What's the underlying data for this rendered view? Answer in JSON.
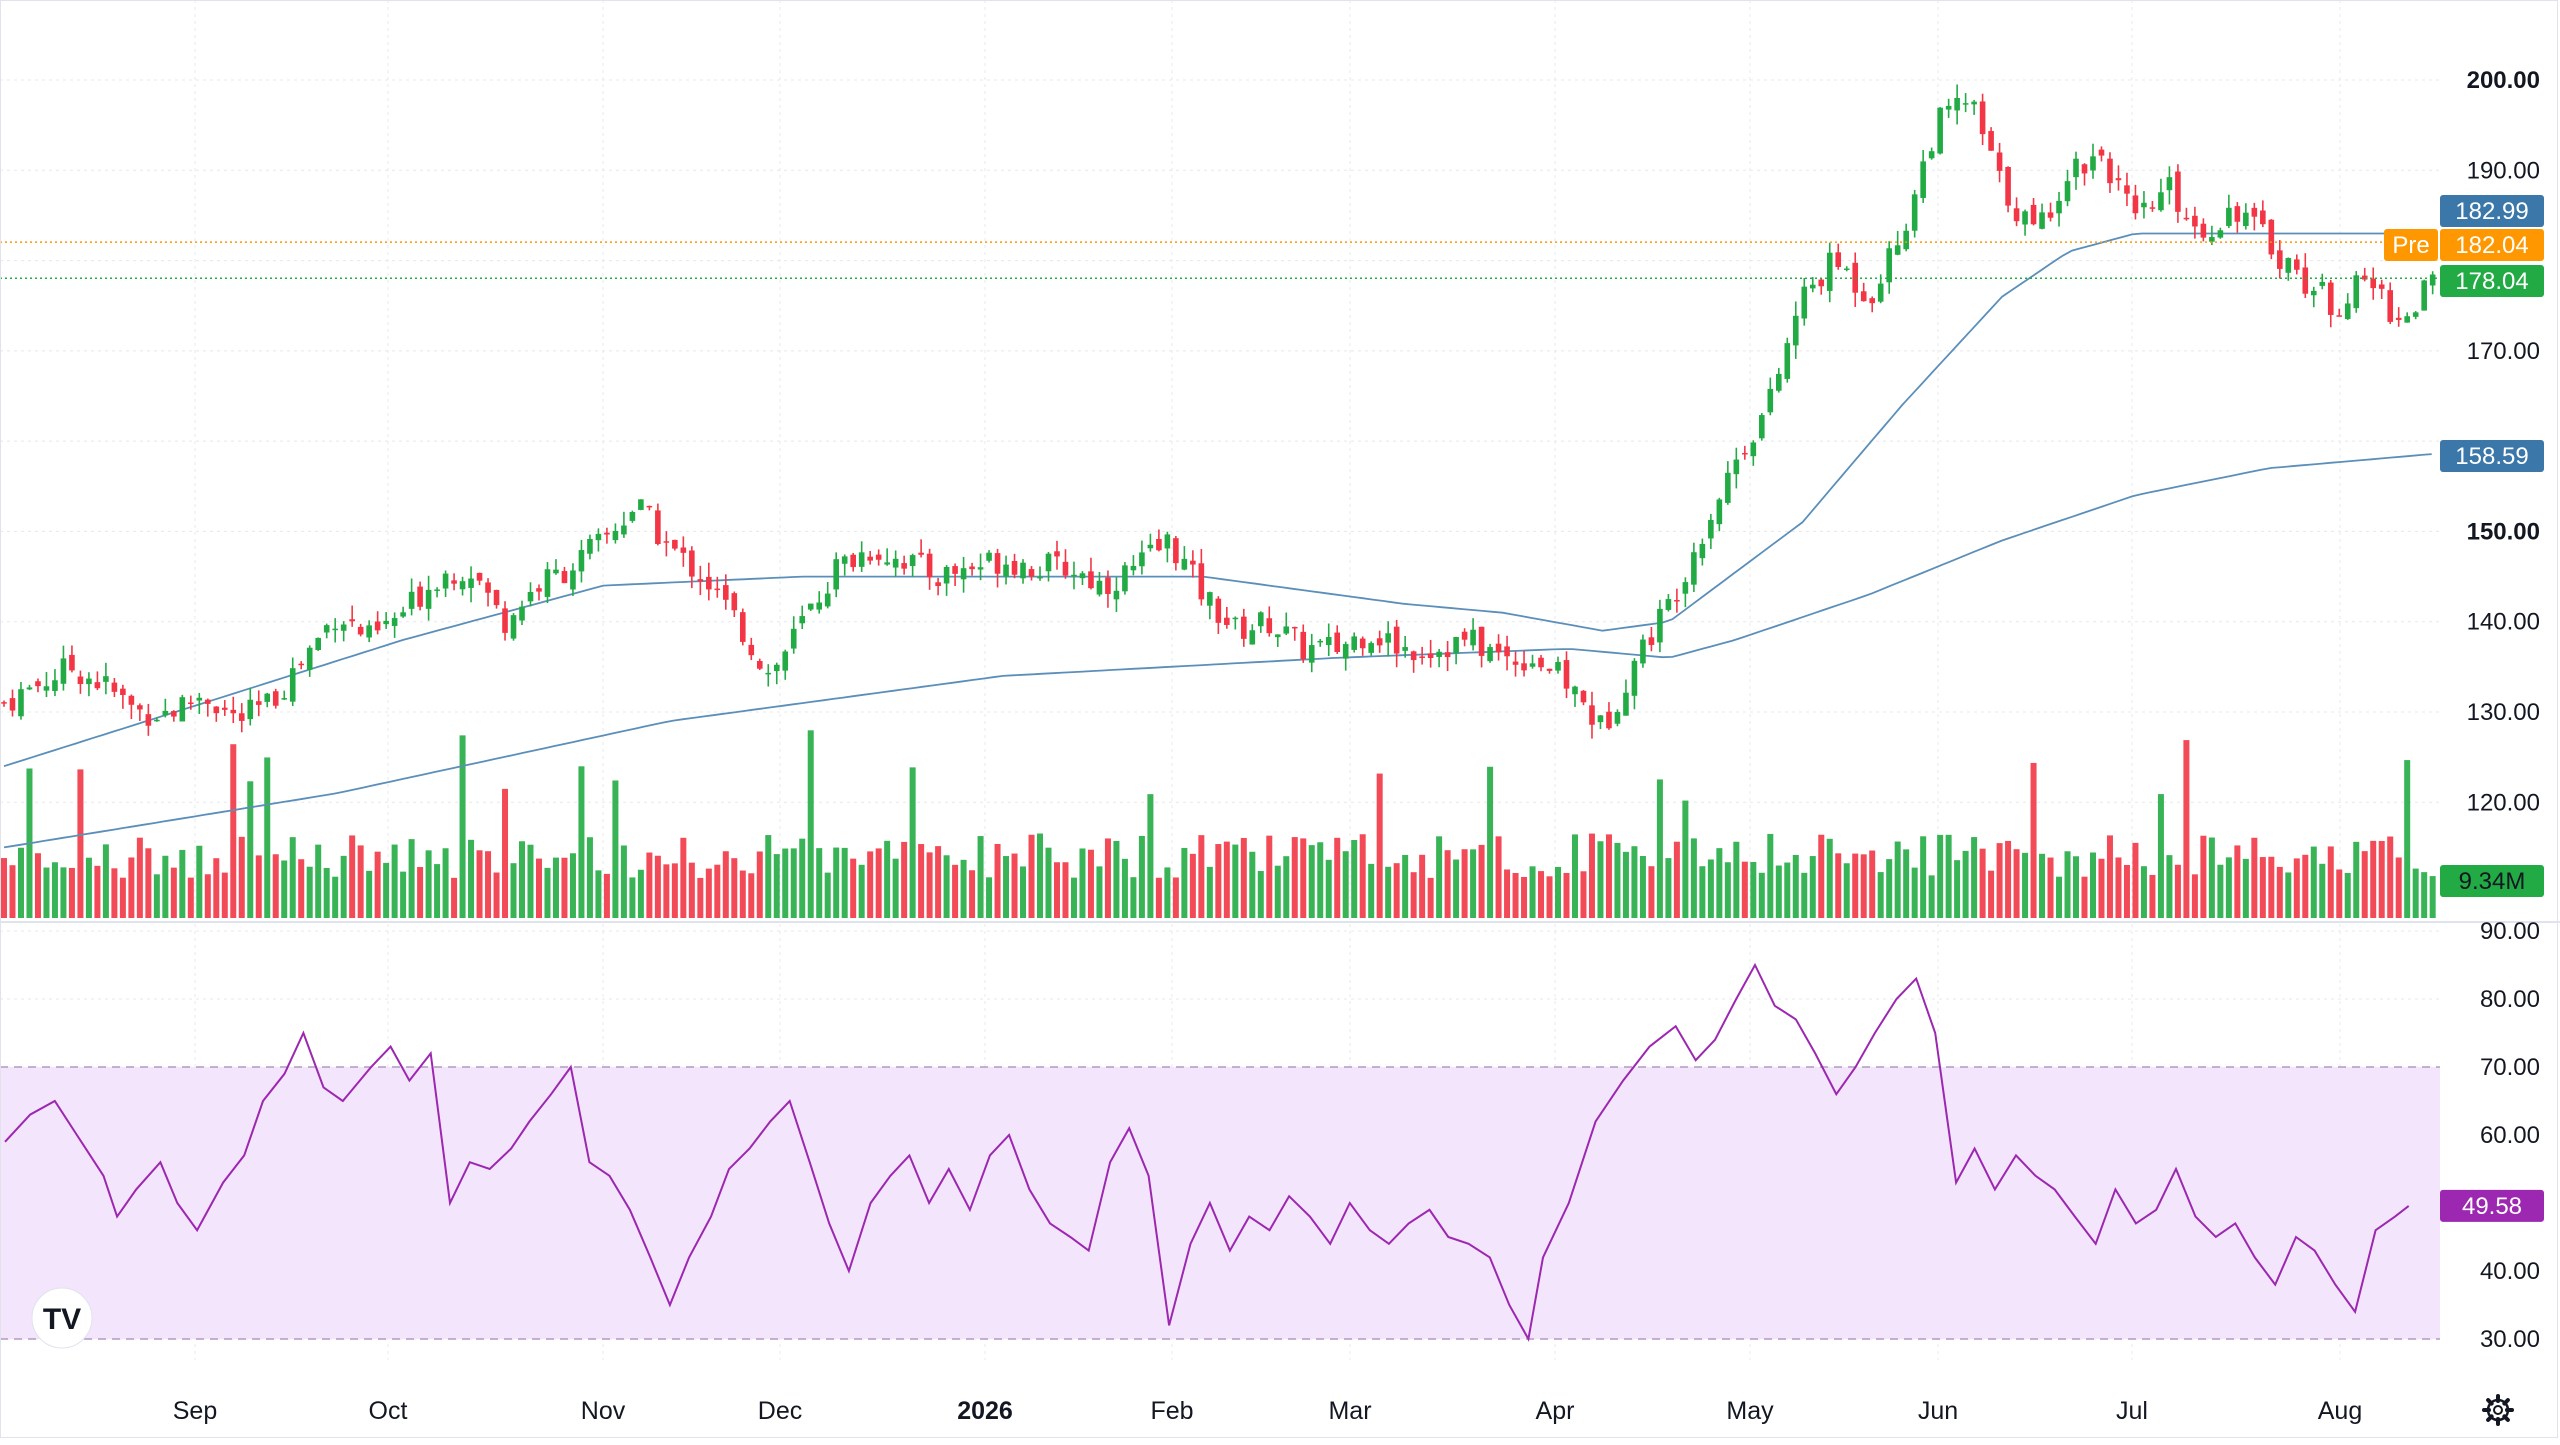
{
  "brand": {
    "logo_text": "TV"
  },
  "colors": {
    "up": "#22ab44",
    "down": "#f23645",
    "ma_line": "#5b8fb9",
    "ma50_badge": "#3b78a9",
    "ma200_badge": "#3b78a9",
    "pre_market": "#ff9800",
    "last_price": "#22ab44",
    "rsi_line": "#9c27b0",
    "rsi_band": "#f3e5fb",
    "grid": "#e6e8ee"
  },
  "chart_data": [
    {
      "type": "candlestick",
      "title": "",
      "y_ticks": [
        "200.00",
        "190.00",
        "170.00",
        "150.00",
        "140.00",
        "130.00",
        "120.00"
      ],
      "ylim": [
        108,
        202
      ],
      "x_ticks": [
        "Sep",
        "Oct",
        "Nov",
        "Dec",
        "2026",
        "Feb",
        "Mar",
        "Apr",
        "May",
        "Jun",
        "Jul",
        "Aug"
      ],
      "grid": true,
      "price_path": [
        [
          0,
          131
        ],
        [
          10,
          133
        ],
        [
          20,
          135
        ],
        [
          30,
          133
        ],
        [
          40,
          130
        ],
        [
          50,
          130
        ],
        [
          60,
          132
        ],
        [
          70,
          129
        ],
        [
          80,
          131
        ],
        [
          90,
          136
        ],
        [
          100,
          141
        ],
        [
          110,
          138
        ],
        [
          120,
          141
        ],
        [
          130,
          145
        ],
        [
          140,
          146
        ],
        [
          150,
          140
        ],
        [
          160,
          144
        ],
        [
          170,
          146
        ],
        [
          180,
          149
        ],
        [
          190,
          153
        ],
        [
          200,
          148
        ],
        [
          210,
          145
        ],
        [
          220,
          140
        ],
        [
          230,
          134
        ],
        [
          240,
          140
        ],
        [
          250,
          146
        ],
        [
          260,
          148
        ],
        [
          270,
          147
        ],
        [
          280,
          145
        ],
        [
          290,
          146
        ],
        [
          300,
          147
        ],
        [
          310,
          146
        ],
        [
          320,
          146
        ],
        [
          330,
          144
        ],
        [
          340,
          146
        ],
        [
          350,
          149
        ],
        [
          360,
          143
        ],
        [
          370,
          139
        ],
        [
          380,
          140
        ],
        [
          390,
          137
        ],
        [
          400,
          137
        ],
        [
          410,
          139
        ],
        [
          420,
          137
        ],
        [
          430,
          137
        ],
        [
          440,
          138
        ],
        [
          450,
          136
        ],
        [
          460,
          136
        ],
        [
          470,
          133
        ],
        [
          480,
          128
        ],
        [
          490,
          136
        ],
        [
          500,
          142
        ],
        [
          510,
          150
        ],
        [
          520,
          158
        ],
        [
          530,
          164
        ],
        [
          540,
          176
        ],
        [
          550,
          180
        ],
        [
          560,
          176
        ],
        [
          570,
          183
        ],
        [
          580,
          195
        ],
        [
          590,
          198
        ],
        [
          600,
          188
        ],
        [
          610,
          183
        ],
        [
          620,
          190
        ],
        [
          630,
          192
        ],
        [
          640,
          184
        ],
        [
          650,
          188
        ],
        [
          660,
          183
        ],
        [
          670,
          186
        ],
        [
          680,
          182
        ],
        [
          690,
          178
        ],
        [
          700,
          175
        ],
        [
          710,
          178
        ],
        [
          720,
          173
        ],
        [
          730,
          178
        ]
      ],
      "ohlc_sample_last": {
        "open": 174.2,
        "high": 179.5,
        "low": 173.1,
        "close": 178.04
      },
      "ma50": [
        [
          0,
          124
        ],
        [
          60,
          131
        ],
        [
          120,
          138
        ],
        [
          180,
          144
        ],
        [
          240,
          145
        ],
        [
          300,
          145
        ],
        [
          360,
          145
        ],
        [
          420,
          142
        ],
        [
          450,
          141
        ],
        [
          480,
          139
        ],
        [
          500,
          140
        ],
        [
          540,
          151
        ],
        [
          570,
          164
        ],
        [
          600,
          176
        ],
        [
          620,
          181
        ],
        [
          640,
          183
        ],
        [
          660,
          183
        ],
        [
          680,
          183
        ],
        [
          700,
          183
        ],
        [
          730,
          183
        ]
      ],
      "ma200": [
        [
          0,
          115
        ],
        [
          100,
          121
        ],
        [
          200,
          129
        ],
        [
          300,
          134
        ],
        [
          400,
          136
        ],
        [
          470,
          137
        ],
        [
          500,
          136
        ],
        [
          520,
          138
        ],
        [
          560,
          143
        ],
        [
          600,
          149
        ],
        [
          640,
          154
        ],
        [
          680,
          157
        ],
        [
          730,
          158.6
        ]
      ],
      "price_badges": [
        {
          "label": "182.99",
          "value": 182.99,
          "role": "ma50"
        },
        {
          "label": "182.04",
          "prefix": "Pre",
          "value": 182.04,
          "role": "pre_market"
        },
        {
          "label": "178.04",
          "value": 178.04,
          "role": "last"
        },
        {
          "label": "158.59",
          "value": 158.59,
          "role": "ma200"
        }
      ]
    },
    {
      "type": "bar",
      "name": "volume",
      "last_label": "9.34M",
      "bars_count": 286
    },
    {
      "type": "line",
      "name": "RSI",
      "y_ticks": [
        "90.00",
        "80.00",
        "70.00",
        "60.00",
        "40.00",
        "30.00"
      ],
      "ylim": [
        28,
        92
      ],
      "band": [
        30,
        70
      ],
      "last_label": "49.58",
      "values": [
        [
          0,
          59
        ],
        [
          8,
          63
        ],
        [
          15,
          65
        ],
        [
          22,
          60
        ],
        [
          30,
          54
        ],
        [
          34,
          48
        ],
        [
          40,
          52
        ],
        [
          47,
          56
        ],
        [
          52,
          50
        ],
        [
          58,
          46
        ],
        [
          66,
          53
        ],
        [
          72,
          57
        ],
        [
          78,
          65
        ],
        [
          84,
          69
        ],
        [
          90,
          75
        ],
        [
          96,
          67
        ],
        [
          102,
          65
        ],
        [
          110,
          70
        ],
        [
          116,
          73
        ],
        [
          122,
          68
        ],
        [
          128,
          72
        ],
        [
          134,
          50
        ],
        [
          140,
          56
        ],
        [
          146,
          55
        ],
        [
          152,
          58
        ],
        [
          158,
          62
        ],
        [
          164,
          66
        ],
        [
          170,
          70
        ],
        [
          176,
          56
        ],
        [
          182,
          54
        ],
        [
          188,
          49
        ],
        [
          194,
          42
        ],
        [
          200,
          35
        ],
        [
          206,
          42
        ],
        [
          212,
          48
        ],
        [
          218,
          55
        ],
        [
          224,
          58
        ],
        [
          230,
          62
        ],
        [
          236,
          65
        ],
        [
          242,
          56
        ],
        [
          248,
          47
        ],
        [
          254,
          40
        ],
        [
          260,
          50
        ],
        [
          266,
          54
        ],
        [
          272,
          57
        ],
        [
          278,
          50
        ],
        [
          284,
          55
        ],
        [
          290,
          49
        ],
        [
          296,
          57
        ],
        [
          302,
          60
        ],
        [
          308,
          52
        ],
        [
          314,
          47
        ],
        [
          320,
          45
        ],
        [
          326,
          43
        ],
        [
          332,
          56
        ],
        [
          338,
          61
        ],
        [
          344,
          54
        ],
        [
          350,
          32
        ],
        [
          356,
          44
        ],
        [
          362,
          50
        ],
        [
          368,
          43
        ],
        [
          374,
          48
        ],
        [
          380,
          46
        ],
        [
          386,
          51
        ],
        [
          392,
          48
        ],
        [
          398,
          44
        ],
        [
          404,
          50
        ],
        [
          410,
          46
        ],
        [
          416,
          44
        ],
        [
          422,
          47
        ],
        [
          428,
          49
        ],
        [
          434,
          45
        ],
        [
          440,
          44
        ],
        [
          446,
          42
        ],
        [
          452,
          35
        ],
        [
          458,
          30
        ],
        [
          462,
          42
        ],
        [
          470,
          50
        ],
        [
          478,
          62
        ],
        [
          486,
          68
        ],
        [
          494,
          73
        ],
        [
          502,
          76
        ],
        [
          508,
          71
        ],
        [
          514,
          74
        ],
        [
          520,
          80
        ],
        [
          526,
          85
        ],
        [
          532,
          79
        ],
        [
          538,
          77
        ],
        [
          544,
          72
        ],
        [
          550,
          66
        ],
        [
          556,
          70
        ],
        [
          562,
          75
        ],
        [
          568,
          80
        ],
        [
          574,
          83
        ],
        [
          580,
          75
        ],
        [
          586,
          53
        ],
        [
          592,
          58
        ],
        [
          598,
          52
        ],
        [
          604,
          57
        ],
        [
          610,
          54
        ],
        [
          616,
          52
        ],
        [
          622,
          48
        ],
        [
          628,
          44
        ],
        [
          634,
          52
        ],
        [
          640,
          47
        ],
        [
          646,
          49
        ],
        [
          652,
          55
        ],
        [
          658,
          48
        ],
        [
          664,
          45
        ],
        [
          670,
          47
        ],
        [
          676,
          42
        ],
        [
          682,
          38
        ],
        [
          688,
          45
        ],
        [
          694,
          43
        ],
        [
          700,
          38
        ],
        [
          706,
          34
        ],
        [
          712,
          46
        ],
        [
          718,
          48
        ],
        [
          722,
          49.58
        ]
      ]
    }
  ],
  "settings": {
    "gear_label": "chart settings"
  }
}
